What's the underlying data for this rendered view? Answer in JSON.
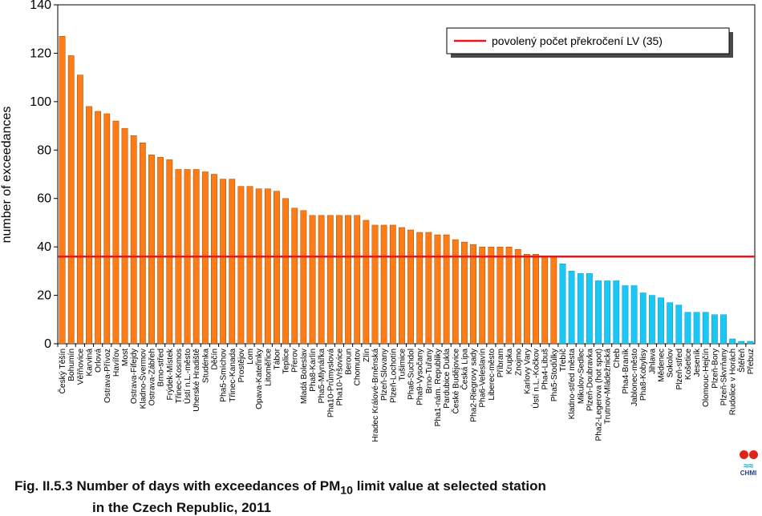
{
  "caption": {
    "prefix": "Fig. II.5.3  Number of days with exceedances of PM",
    "subscript": "10",
    "suffix": " limit value at selected station",
    "line2": "in the Czech Republic, 2011"
  },
  "logo": {
    "text": "CHMI"
  },
  "chart_data": {
    "type": "bar",
    "title": "",
    "xlabel": "",
    "ylabel": "number of exceedances",
    "ylim": [
      0,
      140
    ],
    "yticks": [
      0,
      20,
      40,
      60,
      80,
      100,
      120,
      140
    ],
    "grid": false,
    "legend": {
      "position": "top-right",
      "entries": [
        "povolený počet překročení LV (35)"
      ]
    },
    "threshold": {
      "label": "povolený počet překročení LV (35)",
      "value": 35,
      "drawn_at": 36,
      "color": "#e8161b"
    },
    "colors": {
      "above": "#ff7c14",
      "below": "#1ac8f5",
      "edge": "#6a3a10",
      "edge_below": "#0a7aa0"
    },
    "categories": [
      "Český Těšín",
      "Bohumín",
      "Věřňovice",
      "Karviná",
      "Orlová",
      "Ostrava-Přívoz",
      "Havířov",
      "Most",
      "Ostrava-Fifejdy",
      "Kladno-Švermov",
      "Ostrava-Zábřeh",
      "Brno-střed",
      "Frýdek-Místek",
      "Třinec-Kosmos",
      "Ústí n.L.-město",
      "Uherské Hradiště",
      "Studénka",
      "Děčín",
      "Pha5-Smíchov",
      "Třinec-Kanada",
      "Prostějov",
      "Lom",
      "Opava-Kateřinky",
      "Litoměřice",
      "Tábor",
      "Teplice",
      "Přerov",
      "Mladá Boleslav",
      "Pha8-Karlín",
      "Pha5-Mlynářka",
      "Pha10-Průmyslová",
      "Pha10-Vršovice",
      "Beroun",
      "Chomutov",
      "Zlín",
      "Hradec Králové-Brněnská",
      "Plzeň-Slovany",
      "Plzeň-Lochotín",
      "Tušimice",
      "Pha6-Suchdol",
      "Pha9-Vysočany",
      "Brno-Tuřany",
      "Pha1-nám. Republiky",
      "Pardubice Dukla",
      "České Budějovice",
      "Česká Lípa",
      "Pha2-Riegrovy sady",
      "Pha6-Veleslavín",
      "Liberec-město",
      "Příbram",
      "Krupka",
      "Znojmo",
      "Karlovy Vary",
      "Ústí n.L.-Kočkov",
      "Pha4-Libuš",
      "Pha5-Stodůlky",
      "Třebíč",
      "Kladno-střed města",
      "Mikulov-Sedlec",
      "Plzeň-Doubravka",
      "Pha2-Legerova (hot spot)",
      "Trutnov-Mládežnická",
      "Cheb",
      "Pha4-Braník",
      "Jablonec-město",
      "Pha8-Kobylisy",
      "Jihlava",
      "Mědenec",
      "Sokolov",
      "Plzeň-střed",
      "Košetice",
      "Jeseník",
      "Olomouc-Hejčín",
      "Plzeň-Bory",
      "Plzeň-Skvrňany",
      "Rudolice v Horách",
      "Štěřeň",
      "Přebuz"
    ],
    "values": [
      127,
      119,
      111,
      98,
      96,
      95,
      92,
      89,
      86,
      83,
      78,
      77,
      76,
      72,
      72,
      72,
      71,
      70,
      68,
      68,
      65,
      65,
      64,
      64,
      63,
      60,
      56,
      55,
      53,
      53,
      53,
      53,
      53,
      53,
      51,
      49,
      49,
      49,
      48,
      47,
      46,
      46,
      45,
      45,
      43,
      42,
      41,
      40,
      40,
      40,
      40,
      39,
      37,
      37,
      36,
      36,
      33,
      30,
      29,
      29,
      26,
      26,
      26,
      24,
      24,
      21,
      20,
      19,
      17,
      16,
      13,
      13,
      13,
      12,
      12,
      2,
      1,
      1
    ]
  }
}
